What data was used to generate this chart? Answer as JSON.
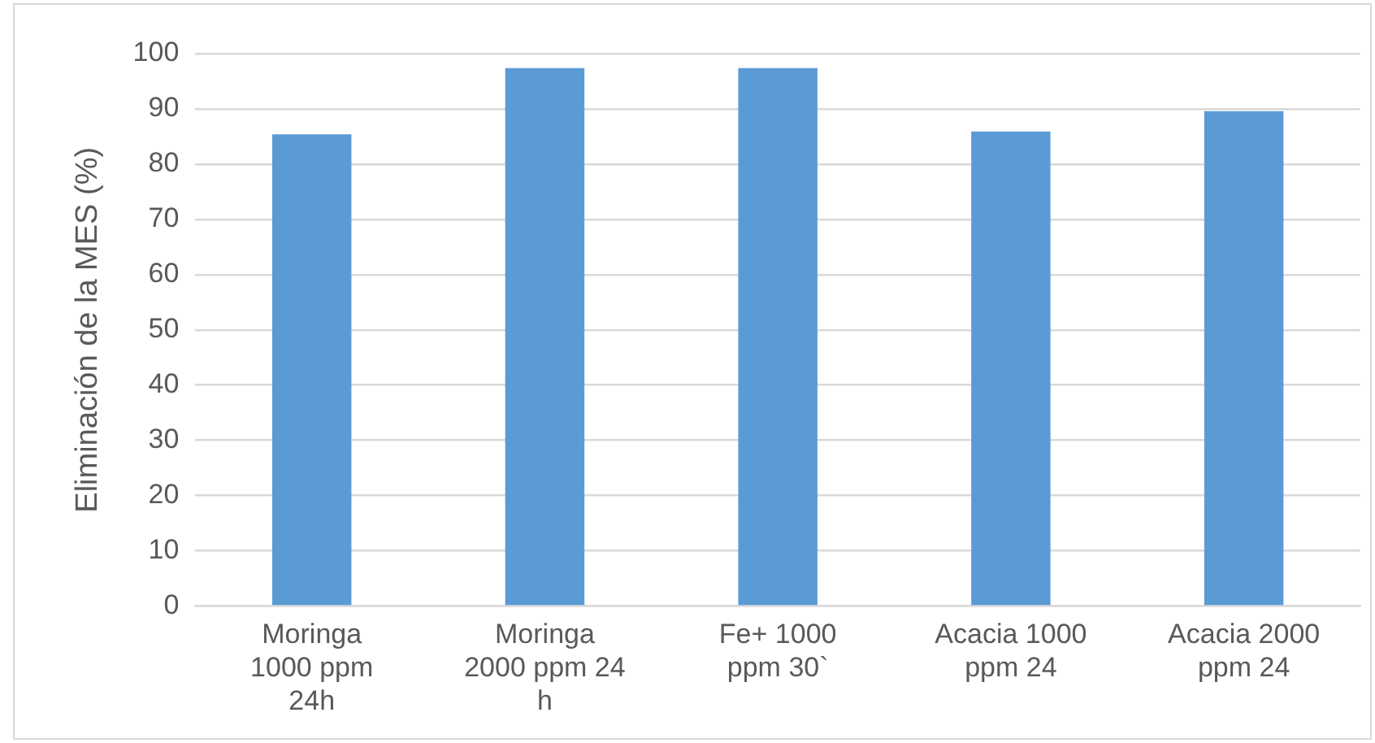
{
  "chart_data": {
    "type": "bar",
    "ylabel": "Eliminación de la MES (%)",
    "categories": [
      "Moringa 1000 ppm 24h",
      "Moringa 2000 ppm 24 h",
      "Fe+ 1000 ppm 30`",
      "Acacia 1000 ppm 24",
      "Acacia 2000 ppm 24"
    ],
    "values": [
      85.4,
      97.4,
      97.4,
      85.9,
      89.6
    ],
    "color": "#5b9bd5",
    "ylim": [
      0,
      100
    ],
    "yticks": [
      0,
      10,
      20,
      30,
      40,
      50,
      60,
      70,
      80,
      90,
      100
    ],
    "grid": "y",
    "legend": false
  }
}
